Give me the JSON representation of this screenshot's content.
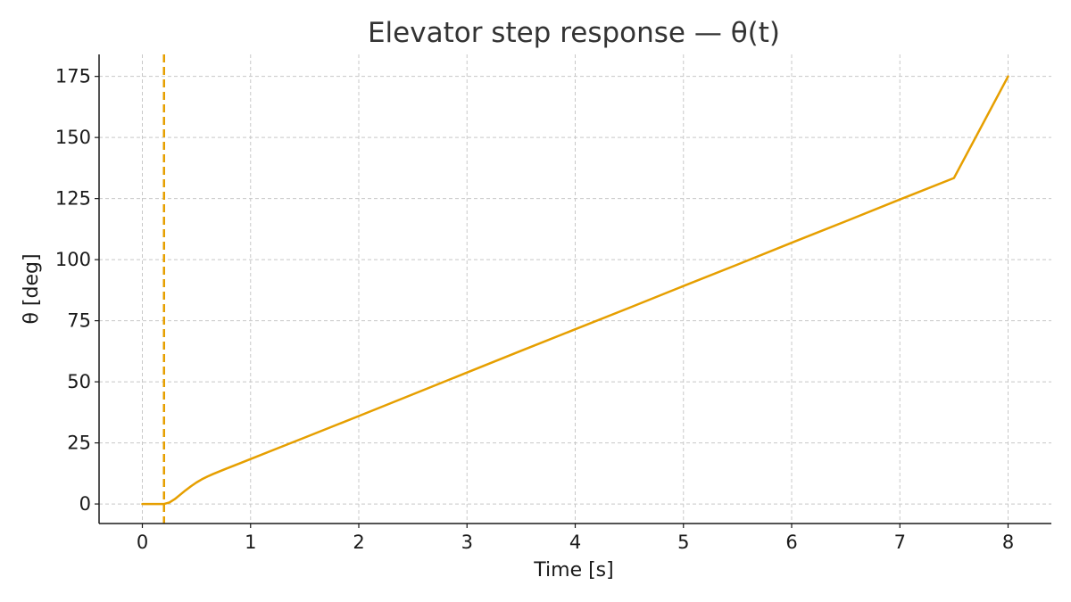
{
  "chart_data": {
    "type": "line",
    "title": "Elevator step response — θ(t)",
    "xlabel": "Time [s]",
    "ylabel": "θ [deg]",
    "xlim": [
      -0.4,
      8.4
    ],
    "ylim": [
      -8,
      184
    ],
    "xticks": [
      0,
      1,
      2,
      3,
      4,
      5,
      6,
      7,
      8
    ],
    "yticks": [
      0,
      25,
      50,
      75,
      100,
      125,
      150,
      175
    ],
    "grid": true,
    "color": "#e69f00",
    "series": [
      {
        "x": [
          0,
          0.1,
          0.2,
          0.25,
          0.3,
          0.35,
          0.4,
          0.45,
          0.5,
          0.55,
          0.6,
          0.65,
          0.7,
          0.8,
          0.9,
          1.0,
          1.25,
          1.5,
          2,
          2.5,
          3,
          3.5,
          4,
          4.5,
          5,
          5.5,
          6,
          6.5,
          7,
          7.5,
          8
        ],
        "y": [
          0,
          0,
          0,
          0.6,
          2.0,
          3.8,
          5.6,
          7.3,
          8.8,
          10.1,
          11.2,
          12.2,
          13.1,
          14.9,
          16.6,
          18.4,
          22.8,
          27.2,
          36.0,
          44.9,
          53.8,
          62.7,
          71.5,
          80.3,
          89.2,
          98.0,
          106.9,
          115.7,
          124.6,
          133.4,
          175
        ]
      }
    ],
    "vlines": [
      {
        "x": 0.2,
        "style": "dashed"
      }
    ]
  }
}
